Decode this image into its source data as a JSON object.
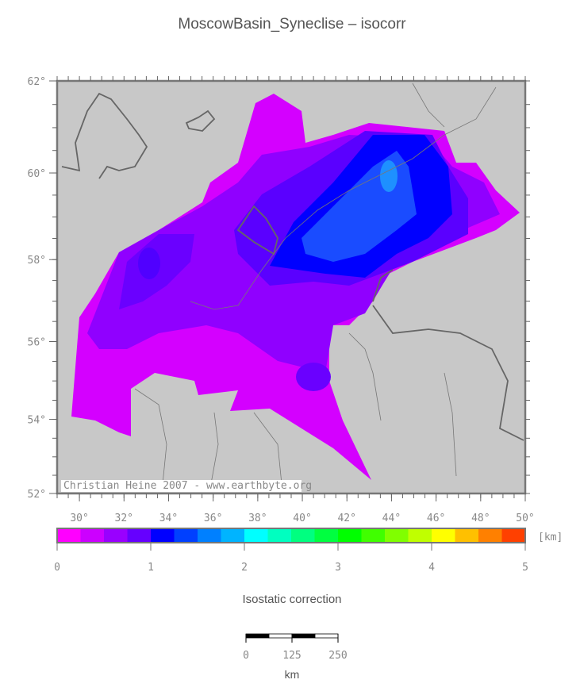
{
  "title": "MoscowBasin_Syneclise – isocorr",
  "map": {
    "xlim": [
      29,
      50
    ],
    "ylim": [
      52,
      62
    ],
    "lon_ticks": [
      {
        "value": 30,
        "label": "30°"
      },
      {
        "value": 32,
        "label": "32°"
      },
      {
        "value": 34,
        "label": "34°"
      },
      {
        "value": 36,
        "label": "36°"
      },
      {
        "value": 38,
        "label": "38°"
      },
      {
        "value": 40,
        "label": "40°"
      },
      {
        "value": 42,
        "label": "42°"
      },
      {
        "value": 44,
        "label": "44°"
      },
      {
        "value": 46,
        "label": "46°"
      },
      {
        "value": 48,
        "label": "48°"
      },
      {
        "value": 50,
        "label": "50°"
      }
    ],
    "lat_ticks": [
      {
        "value": 52,
        "label": "52°"
      },
      {
        "value": 54,
        "label": "54°"
      },
      {
        "value": 56,
        "label": "56°"
      },
      {
        "value": 58,
        "label": "58°"
      },
      {
        "value": 60,
        "label": "60°"
      },
      {
        "value": 62,
        "label": "62°"
      }
    ],
    "credit": "Christian Heine 2007 - www.earthbyte.org"
  },
  "colorbar": {
    "lim": [
      0,
      5
    ],
    "ticks": [
      0,
      1,
      2,
      3,
      4,
      5
    ],
    "unit": "[km]",
    "label": "Isostatic correction",
    "colors": [
      "#ff00ff",
      "#cc00ff",
      "#9900ff",
      "#6600ff",
      "#0000ff",
      "#0040ff",
      "#0080ff",
      "#00b4ff",
      "#00ffff",
      "#00ffc0",
      "#00ff80",
      "#00ff40",
      "#00ff00",
      "#40ff00",
      "#80ff00",
      "#c0ff00",
      "#ffff00",
      "#ffc000",
      "#ff8000",
      "#ff4000"
    ]
  },
  "scale_bar": {
    "ticks": [
      0,
      125,
      250
    ],
    "unit": "km"
  }
}
